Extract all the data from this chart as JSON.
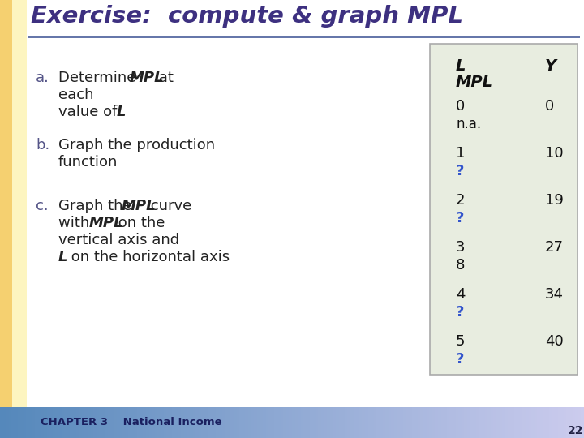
{
  "title": "Exercise:  compute & graph MPL",
  "slide_bg": "#ffffff",
  "title_color": "#3d3080",
  "left_strip1_color": "#f5d070",
  "left_strip2_color": "#fdf5c0",
  "footer_bg_left": "#5588bb",
  "footer_bg_right": "#aabbdd",
  "footer_text": "CHAPTER 3    National Income",
  "page_number": "22",
  "divider_color": "#6677aa",
  "bullet_color": "#222222",
  "label_color": "#555588",
  "table_bg": "#e8ede0",
  "table_border": "#aaaaaa",
  "col_L_header": "L",
  "col_Y_header": "Y",
  "col_MPL_header": "MPL",
  "table_rows": [
    {
      "L": "0",
      "Y": "0",
      "MPL": "n.a."
    },
    {
      "L": "1",
      "Y": "10",
      "MPL": "?"
    },
    {
      "L": "2",
      "Y": "19",
      "MPL": "?"
    },
    {
      "L": "3",
      "Y": "27",
      "MPL": "8"
    },
    {
      "L": "4",
      "Y": "34",
      "MPL": "?"
    },
    {
      "L": "5",
      "Y": "40",
      "MPL": "?"
    }
  ],
  "mpl_q_color": "#3355cc",
  "table_text_color": "#111111"
}
